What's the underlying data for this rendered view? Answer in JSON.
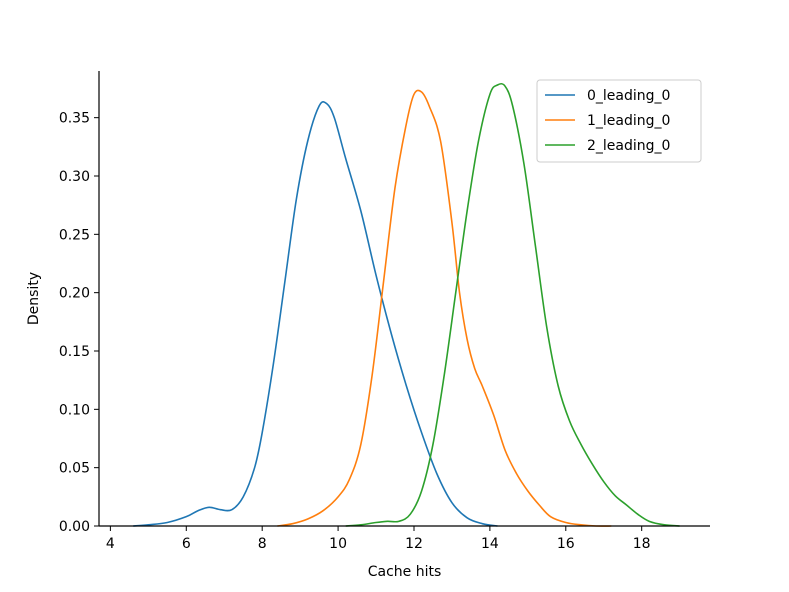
{
  "chart_data": {
    "type": "line",
    "title": "",
    "xlabel": "Cache hits",
    "ylabel": "Density",
    "xlim": [
      3.7,
      19.8
    ],
    "ylim": [
      0,
      0.39
    ],
    "xticks": [
      4,
      6,
      8,
      10,
      12,
      14,
      16,
      18
    ],
    "xtick_labels": [
      "4",
      "6",
      "8",
      "10",
      "12",
      "14",
      "16",
      "18"
    ],
    "yticks": [
      0,
      0.05,
      0.1,
      0.15,
      0.2,
      0.25,
      0.3,
      0.35
    ],
    "ytick_labels": [
      "0.00",
      "0.05",
      "0.10",
      "0.15",
      "0.20",
      "0.25",
      "0.30",
      "0.35"
    ],
    "grid": false,
    "legend_position": "top-right",
    "series": [
      {
        "name": "0_leading_0",
        "color": "#1f77b4",
        "x": [
          4.6,
          5.0,
          5.5,
          6.0,
          6.3,
          6.6,
          6.9,
          7.2,
          7.5,
          7.8,
          8.0,
          8.3,
          8.6,
          8.9,
          9.2,
          9.5,
          9.7,
          9.9,
          10.2,
          10.6,
          11.0,
          11.4,
          11.8,
          12.2,
          12.6,
          13.0,
          13.4,
          13.8,
          14.2
        ],
        "y": [
          0.0,
          0.001,
          0.003,
          0.008,
          0.013,
          0.016,
          0.014,
          0.014,
          0.025,
          0.05,
          0.08,
          0.14,
          0.21,
          0.28,
          0.33,
          0.36,
          0.362,
          0.35,
          0.315,
          0.27,
          0.215,
          0.165,
          0.12,
          0.08,
          0.045,
          0.02,
          0.007,
          0.002,
          0.0
        ]
      },
      {
        "name": "1_leading_0",
        "color": "#ff7f0e",
        "x": [
          8.4,
          8.8,
          9.2,
          9.6,
          10.0,
          10.3,
          10.6,
          10.9,
          11.2,
          11.5,
          11.8,
          12.0,
          12.2,
          12.4,
          12.7,
          13.0,
          13.2,
          13.4,
          13.6,
          13.8,
          14.1,
          14.4,
          14.7,
          15.0,
          15.3,
          15.6,
          16.0,
          16.4,
          16.8,
          17.2
        ],
        "y": [
          0.0,
          0.002,
          0.006,
          0.013,
          0.025,
          0.04,
          0.07,
          0.13,
          0.21,
          0.29,
          0.345,
          0.37,
          0.372,
          0.36,
          0.33,
          0.26,
          0.2,
          0.16,
          0.135,
          0.12,
          0.095,
          0.065,
          0.045,
          0.03,
          0.018,
          0.008,
          0.003,
          0.001,
          0.0,
          0.0
        ]
      },
      {
        "name": "2_leading_0",
        "color": "#2ca02c",
        "x": [
          10.2,
          10.6,
          11.0,
          11.3,
          11.6,
          11.9,
          12.2,
          12.5,
          12.8,
          13.1,
          13.4,
          13.7,
          14.0,
          14.2,
          14.4,
          14.6,
          14.9,
          15.2,
          15.5,
          15.8,
          16.1,
          16.4,
          16.7,
          17.0,
          17.3,
          17.6,
          17.9,
          18.2,
          18.6,
          19.0
        ],
        "y": [
          0.0,
          0.001,
          0.003,
          0.004,
          0.004,
          0.01,
          0.03,
          0.07,
          0.13,
          0.2,
          0.27,
          0.33,
          0.37,
          0.378,
          0.377,
          0.36,
          0.31,
          0.24,
          0.17,
          0.12,
          0.09,
          0.07,
          0.053,
          0.038,
          0.026,
          0.018,
          0.01,
          0.004,
          0.001,
          0.0
        ]
      }
    ]
  }
}
